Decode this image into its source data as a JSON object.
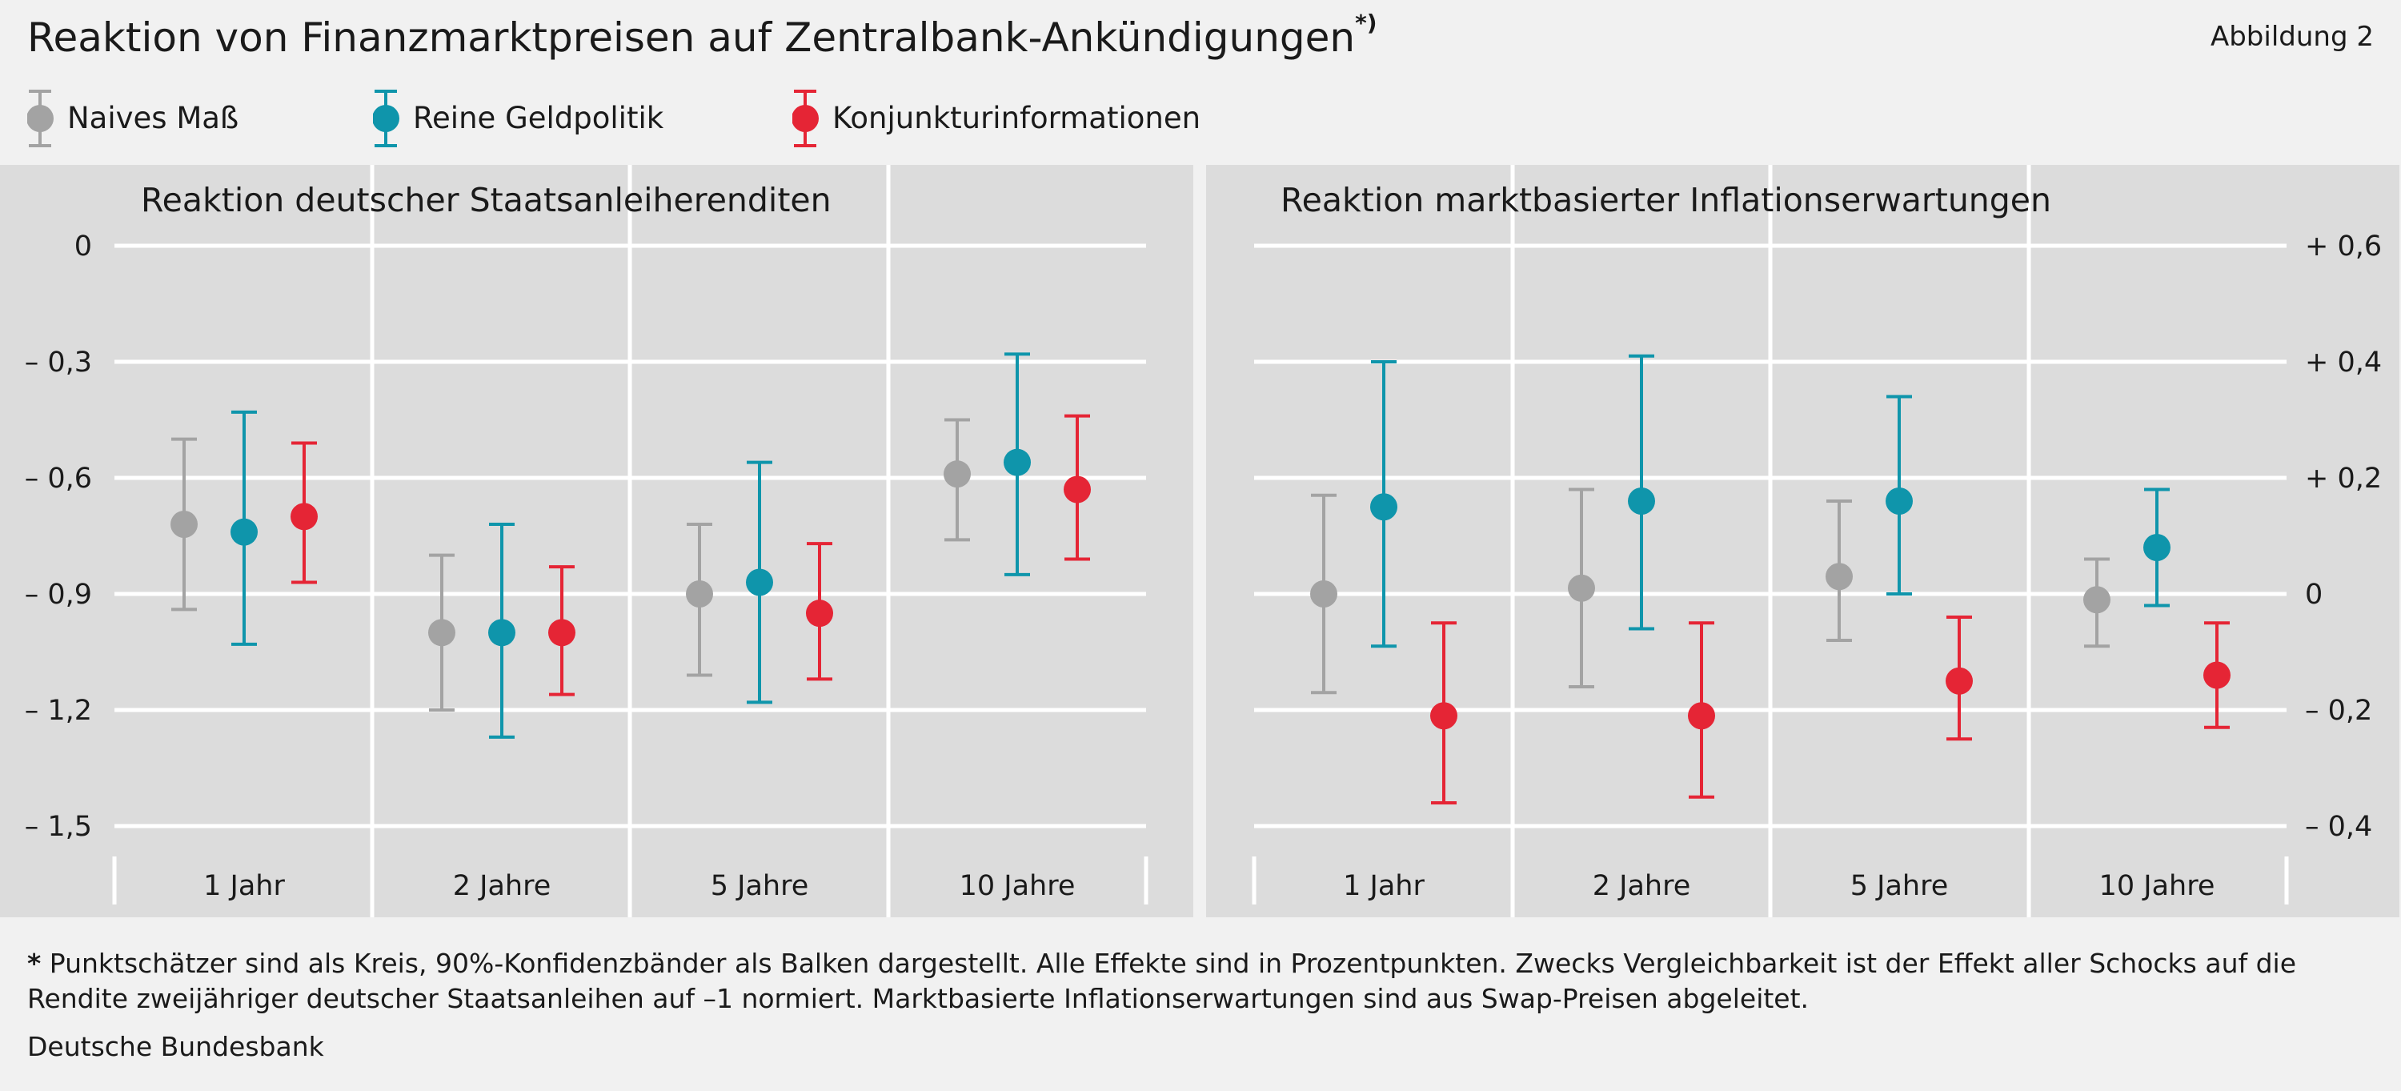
{
  "header": {
    "title": "Reaktion von Finanzmarktpreisen auf Zentralbank-Ankündigungen",
    "title_marker": "*)",
    "figure_label": "Abbildung 2"
  },
  "legend": [
    {
      "name": "Naives Maß",
      "color": "#a3a3a3"
    },
    {
      "name": "Reine Geldpolitik",
      "color": "#0f95ab"
    },
    {
      "name": "Konjunkturinformationen",
      "color": "#e52535"
    }
  ],
  "colors": {
    "panel_background": "#dcdcdc",
    "page_background": "#f1f1f1",
    "grid": "#ffffff"
  },
  "chart_data": [
    {
      "type": "scatter",
      "subtype": "dot-with-error-bars",
      "title": "Reaktion deutscher Staatsanleiherenditen",
      "categories": [
        "1 Jahr",
        "2 Jahre",
        "5 Jahre",
        "10 Jahre"
      ],
      "ylim": [
        -1.5,
        0
      ],
      "yticks": [
        0,
        -0.3,
        -0.6,
        -0.9,
        -1.2,
        -1.5
      ],
      "ytick_labels": [
        "0",
        "– 0,3",
        "– 0,6",
        "– 0,9",
        "– 1,2",
        "– 1,5"
      ],
      "y_axis_side": "left",
      "grid": true,
      "series": [
        {
          "name": "Naives Maß",
          "values": [
            -0.72,
            -1.0,
            -0.9,
            -0.59
          ],
          "lower": [
            -0.94,
            -1.2,
            -1.11,
            -0.76
          ],
          "upper": [
            -0.5,
            -0.8,
            -0.72,
            -0.45
          ]
        },
        {
          "name": "Reine Geldpolitik",
          "values": [
            -0.74,
            -1.0,
            -0.87,
            -0.56
          ],
          "lower": [
            -1.03,
            -1.27,
            -1.18,
            -0.85
          ],
          "upper": [
            -0.43,
            -0.72,
            -0.56,
            -0.28
          ]
        },
        {
          "name": "Konjunkturinformationen",
          "values": [
            -0.7,
            -1.0,
            -0.95,
            -0.63
          ],
          "lower": [
            -0.87,
            -1.16,
            -1.12,
            -0.81
          ],
          "upper": [
            -0.51,
            -0.83,
            -0.77,
            -0.44
          ]
        }
      ]
    },
    {
      "type": "scatter",
      "subtype": "dot-with-error-bars",
      "title": "Reaktion marktbasierter Inflationserwartungen",
      "categories": [
        "1 Jahr",
        "2 Jahre",
        "5 Jahre",
        "10 Jahre"
      ],
      "ylim": [
        -0.4,
        0.6
      ],
      "yticks": [
        0.6,
        0.4,
        0.2,
        0,
        -0.2,
        -0.4
      ],
      "ytick_labels": [
        "+ 0,6",
        "+ 0,4",
        "+ 0,2",
        "0",
        "– 0,2",
        "– 0,4"
      ],
      "y_axis_side": "right",
      "grid": true,
      "series": [
        {
          "name": "Naives Maß",
          "values": [
            0.0,
            0.01,
            0.03,
            -0.01
          ],
          "lower": [
            -0.17,
            -0.16,
            -0.08,
            -0.09
          ],
          "upper": [
            0.17,
            0.18,
            0.16,
            0.06
          ]
        },
        {
          "name": "Reine Geldpolitik",
          "values": [
            0.15,
            0.16,
            0.16,
            0.08
          ],
          "lower": [
            -0.09,
            -0.06,
            0.0,
            -0.02
          ],
          "upper": [
            0.4,
            0.41,
            0.34,
            0.18
          ]
        },
        {
          "name": "Konjunkturinformationen",
          "values": [
            -0.21,
            -0.21,
            -0.15,
            -0.14
          ],
          "lower": [
            -0.36,
            -0.35,
            -0.25,
            -0.23
          ],
          "upper": [
            -0.05,
            -0.05,
            -0.04,
            -0.05
          ]
        }
      ]
    }
  ],
  "footnote": {
    "marker": "*",
    "text": "Punktschätzer sind als Kreis, 90%-Konfidenzbänder als Balken dargestellt. Alle Effekte sind in Prozentpunkten. Zwecks Vergleichbarkeit ist der Effekt aller Schocks auf die Rendite zweijähriger deutscher Staatsanleihen auf –1 normiert. Marktbasierte Inflationserwartungen sind aus Swap-Preisen abgeleitet."
  },
  "source": "Deutsche Bundesbank"
}
